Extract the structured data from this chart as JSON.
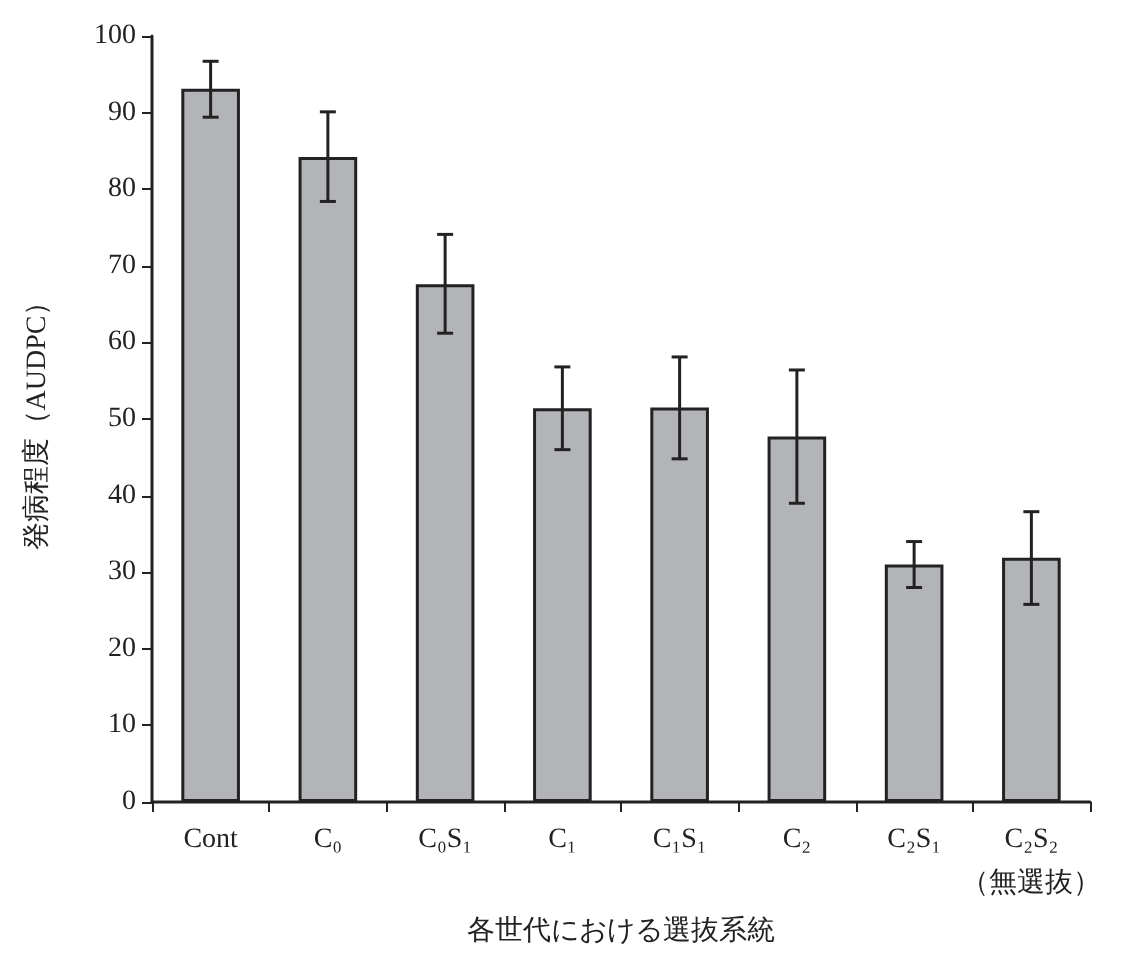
{
  "chart_data": {
    "type": "bar",
    "xlabel": "各世代における選抜系統",
    "ylabel": "発病程度（AUDPC）",
    "categories": [
      "Cont",
      "C₀",
      "C₀S₁",
      "C₁",
      "C₁S₁",
      "C₂",
      "C₂S₁",
      "C₂S₂\n（無選抜）"
    ],
    "values": [
      93.1,
      84.2,
      67.6,
      51.4,
      51.5,
      47.7,
      31.0,
      31.9
    ],
    "errors": [
      [
        89.4,
        96.7
      ],
      [
        78.4,
        90.1
      ],
      [
        61.2,
        74.1
      ],
      [
        46.0,
        56.8
      ],
      [
        44.8,
        58.1
      ],
      [
        39.0,
        56.4
      ],
      [
        28.0,
        34.0
      ],
      [
        25.8,
        37.9
      ]
    ],
    "color": "#b3b4b8",
    "ylim": [
      0,
      100
    ],
    "yticks": [
      0,
      10,
      20,
      30,
      40,
      50,
      60,
      70,
      80,
      90,
      100
    ],
    "grid": false
  }
}
